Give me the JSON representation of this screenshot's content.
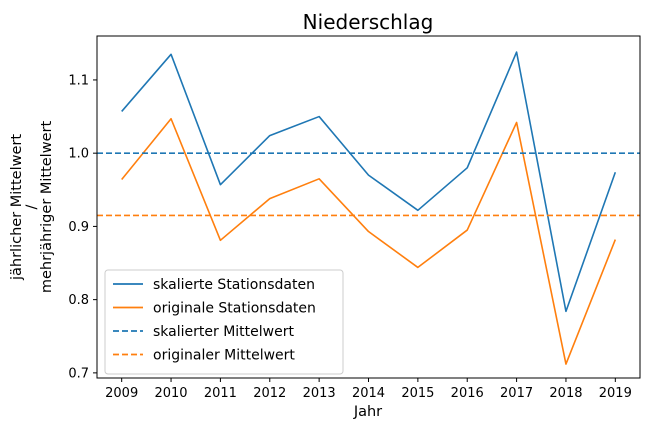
{
  "chart_data": {
    "type": "line",
    "title": "Niederschlag",
    "xlabel": "Jahr",
    "ylabel_lines": [
      "jährlicher Mittelwert",
      "/",
      "mehrjähriger Mittelwert"
    ],
    "x": [
      2009,
      2010,
      2011,
      2012,
      2013,
      2014,
      2015,
      2016,
      2017,
      2018,
      2019
    ],
    "xticks": [
      "2009",
      "2010",
      "2011",
      "2012",
      "2013",
      "2014",
      "2015",
      "2016",
      "2017",
      "2018",
      "2019"
    ],
    "yticks": [
      0.7,
      0.8,
      0.9,
      1.0,
      1.1
    ],
    "yticklabels": [
      "0.7",
      "0.8",
      "0.9",
      "1.0",
      "1.1"
    ],
    "xlim": [
      2008.5,
      2019.5
    ],
    "ylim": [
      0.693,
      1.16
    ],
    "grid": false,
    "legend_position": "lower-left",
    "series": [
      {
        "name": "skalierte Stationsdaten",
        "color": "#1f77b4",
        "style": "solid",
        "values": [
          1.057,
          1.135,
          0.957,
          1.024,
          1.05,
          0.97,
          0.922,
          0.98,
          1.138,
          0.784,
          0.974
        ]
      },
      {
        "name": "originale Stationsdaten",
        "color": "#ff7f0e",
        "style": "solid",
        "values": [
          0.964,
          1.047,
          0.881,
          0.938,
          0.965,
          0.893,
          0.844,
          0.895,
          1.042,
          0.712,
          0.882
        ]
      }
    ],
    "hlines": [
      {
        "name": "skalierter Mittelwert",
        "color": "#1f77b4",
        "style": "dashed",
        "value": 1.0
      },
      {
        "name": "originaler Mittelwert",
        "color": "#ff7f0e",
        "style": "dashed",
        "value": 0.915
      }
    ]
  }
}
